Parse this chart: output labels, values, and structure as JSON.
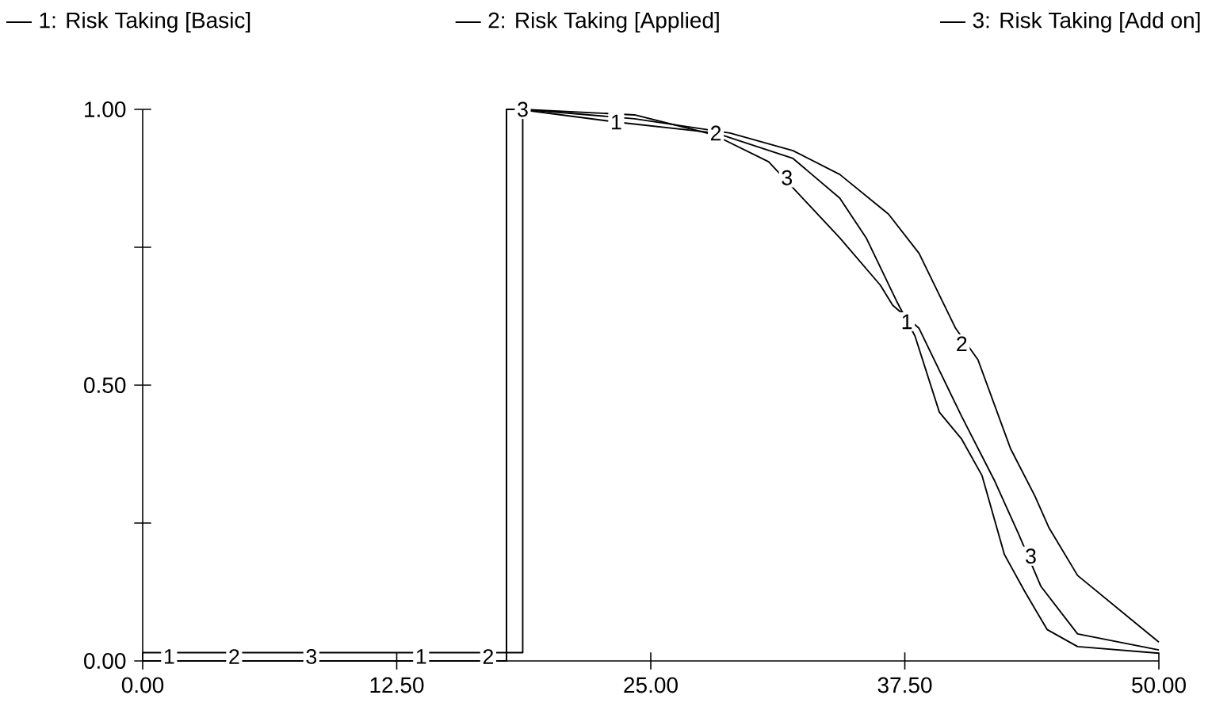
{
  "chart_data": {
    "type": "line",
    "legend": "top",
    "xlim": [
      0,
      50
    ],
    "ylim": [
      0,
      1
    ],
    "xticks": [
      {
        "value": 0,
        "label": "0.00"
      },
      {
        "value": 12.5,
        "label": "12.50"
      },
      {
        "value": 25,
        "label": "25.00"
      },
      {
        "value": 37.5,
        "label": "37.50"
      },
      {
        "value": 50,
        "label": "50.00"
      }
    ],
    "yticks": [
      {
        "value": 0,
        "label": "0.00"
      },
      {
        "value": 0.25,
        "label": null
      },
      {
        "value": 0.5,
        "label": "0.50"
      },
      {
        "value": 0.75,
        "label": null
      },
      {
        "value": 1,
        "label": "1.00"
      }
    ],
    "series": [
      {
        "name": "1: Risk Taking [Basic]",
        "color": "#000000",
        "x": [
          0,
          17.9,
          17.9,
          18.5,
          23.3,
          28.2,
          32.0,
          34.3,
          35.6,
          37.1,
          38.0,
          39.2,
          40.3,
          41.3,
          42.4,
          43.4,
          44.5,
          46.0,
          50
        ],
        "values": [
          0,
          0,
          1.0,
          1.0,
          0.977,
          0.957,
          0.911,
          0.839,
          0.767,
          0.652,
          0.589,
          0.451,
          0.402,
          0.336,
          0.193,
          0.126,
          0.057,
          0.026,
          0.014
        ]
      },
      {
        "name": "2: Risk Taking [Applied]",
        "color": "#000000",
        "x": [
          0,
          17.9,
          17.9,
          18.7,
          24.2,
          28.9,
          32.0,
          34.3,
          36.7,
          38.2,
          40.0,
          41.1,
          42.7,
          43.9,
          44.6,
          46.0,
          50
        ],
        "values": [
          0,
          0,
          1.0,
          1.0,
          0.983,
          0.957,
          0.925,
          0.882,
          0.81,
          0.739,
          0.603,
          0.546,
          0.385,
          0.299,
          0.241,
          0.155,
          0.034
        ]
      },
      {
        "name": "3: Risk Taking [Add on]",
        "color": "#000000",
        "x": [
          0,
          18.7,
          18.7,
          24.2,
          28.1,
          30.8,
          34.3,
          36.3,
          36.9,
          38.2,
          40.3,
          41.9,
          43.1,
          44.2,
          46.0,
          50
        ],
        "values": [
          0.015,
          0.015,
          1.0,
          0.99,
          0.954,
          0.905,
          0.767,
          0.681,
          0.645,
          0.603,
          0.443,
          0.328,
          0.23,
          0.135,
          0.049,
          0.02
        ]
      }
    ],
    "annotations": [
      {
        "text": "1",
        "x": 1.3,
        "y": 0.008
      },
      {
        "text": "2",
        "x": 4.5,
        "y": 0.008
      },
      {
        "text": "3",
        "x": 8.3,
        "y": 0.008
      },
      {
        "text": "1",
        "x": 13.7,
        "y": 0.008
      },
      {
        "text": "2",
        "x": 17.0,
        "y": 0.008
      },
      {
        "text": "3",
        "x": 18.7,
        "y": 1.0
      },
      {
        "text": "1",
        "x": 23.3,
        "y": 0.977
      },
      {
        "text": "2",
        "x": 28.2,
        "y": 0.957
      },
      {
        "text": "3",
        "x": 31.7,
        "y": 0.876
      },
      {
        "text": "1",
        "x": 37.6,
        "y": 0.615
      },
      {
        "text": "2",
        "x": 40.3,
        "y": 0.575
      },
      {
        "text": "3",
        "x": 43.7,
        "y": 0.19
      }
    ]
  }
}
